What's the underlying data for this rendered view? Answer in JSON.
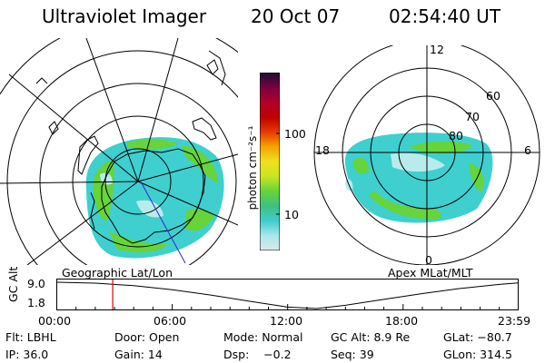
{
  "header": {
    "instrument": "Ultraviolet Imager",
    "date": "20 Oct 07",
    "time": "02:54:40 UT"
  },
  "panels": {
    "left_caption": "Geographic Lat/Lon",
    "right_caption": "Apex MLat/MLT",
    "right_lat_labels": [
      "80",
      "70",
      "60"
    ],
    "right_mlt_labels": [
      "12",
      "18",
      "6",
      "0"
    ]
  },
  "colors": {
    "emission_green": "#66d43a",
    "emission_cyan": "#3fcfcf",
    "emission_pale": "#b8ecec",
    "marker_red": "#e00000",
    "colorbar_stops": [
      "#dde8e8",
      "#a8e8ec",
      "#40cccc",
      "#3fc080",
      "#66d43a",
      "#c8e620",
      "#f0e020",
      "#f4a400",
      "#e43a00",
      "#c00000",
      "#b0002a",
      "#7a0040",
      "#1a1030"
    ]
  },
  "colorbar": {
    "unit_label": "photon cm⁻²s⁻¹",
    "tick_100": "100",
    "tick_10": "10"
  },
  "chart_data": {
    "type": "line",
    "title": "",
    "ylabel": "GC Alt",
    "y_ticks": [
      "9.0",
      "1.8"
    ],
    "x_ticks": [
      "00:00",
      "06:00",
      "12:00",
      "18:00",
      "23:59"
    ],
    "x_hours": [
      0,
      2,
      4,
      6,
      8,
      10,
      12,
      13.5,
      15,
      17,
      19,
      21,
      23,
      23.98
    ],
    "y": [
      9.0,
      8.75,
      8.05,
      6.95,
      5.5,
      3.8,
      2.2,
      1.8,
      2.7,
      4.3,
      5.9,
      7.3,
      8.4,
      8.8
    ],
    "ylim": [
      1.8,
      9.0
    ],
    "xlim": [
      0,
      23.98
    ],
    "current_time_hours": 2.91
  },
  "info": {
    "filter": "Flt: LBHL",
    "door": "Door: Open",
    "mode": "Mode: Normal",
    "gc_alt": "GC Alt: 8.9 Re",
    "glat": "GLat: −80.7",
    "ip": "IP: 36.0",
    "gain": "Gain: 14",
    "dsp": "Dsp:    −0.2",
    "seq": "Seq: 39",
    "glon": "GLon: 314.5"
  }
}
